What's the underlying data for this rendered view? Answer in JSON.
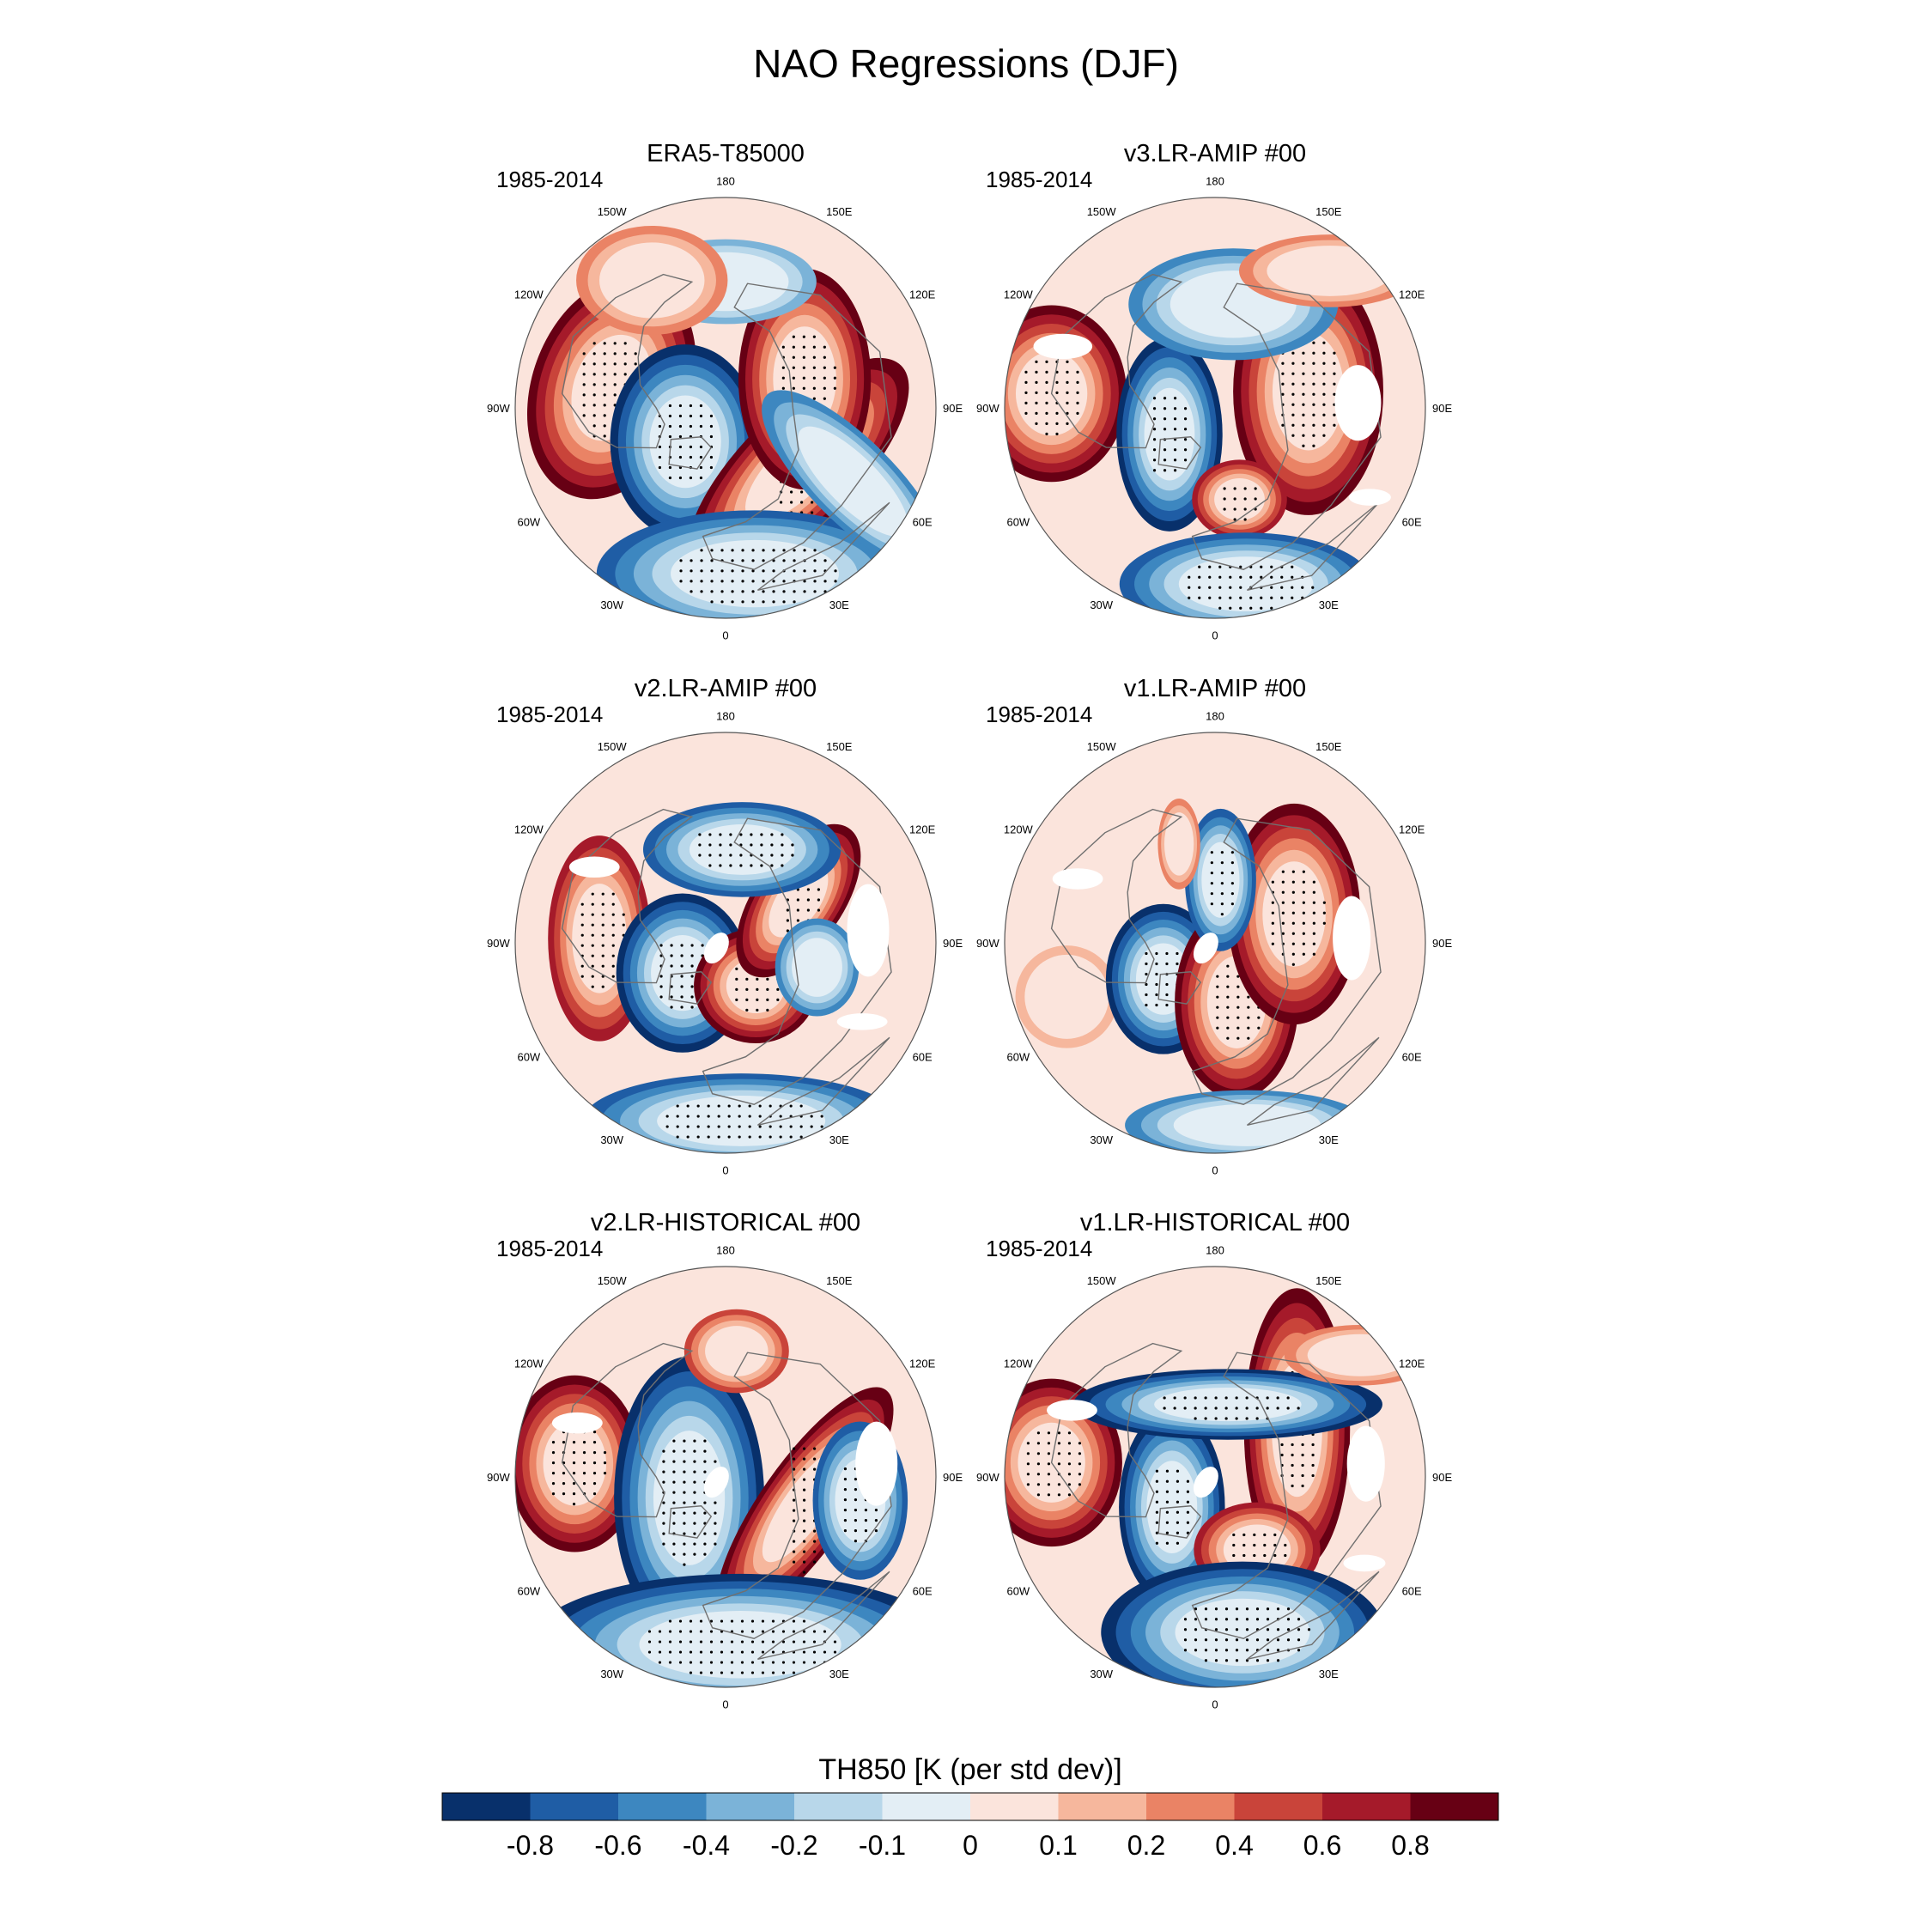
{
  "title": "NAO Regressions (DJF)",
  "colors": {
    "levels": [
      "#08306b",
      "#1f5da5",
      "#3d87c0",
      "#7bb3d8",
      "#b8d7ea",
      "#e3eef5",
      "#fbe4dc",
      "#f6b79d",
      "#ea8365",
      "#c9443a",
      "#a51a2a",
      "#670014"
    ],
    "land": "#707070",
    "stipple": "#000000",
    "missing": "#ffffff",
    "outline": "#555555"
  },
  "panels": [
    {
      "title": "ERA5-T85000",
      "period": "1985-2014",
      "blobs": [
        {
          "lon": -100,
          "r": 0.55,
          "rx": 0.18,
          "ry": 0.26,
          "rot": 20,
          "level": 11
        },
        {
          "lon": -50,
          "r": 0.25,
          "rx": 0.17,
          "ry": 0.22,
          "rot": 0,
          "level": 0
        },
        {
          "lon": 50,
          "r": 0.45,
          "rx": 0.13,
          "ry": 0.33,
          "rot": 45,
          "level": 11
        },
        {
          "lon": 110,
          "r": 0.4,
          "rx": 0.15,
          "ry": 0.25,
          "rot": 0,
          "level": 11
        },
        {
          "lon": 10,
          "r": 0.8,
          "rx": 0.4,
          "ry": 0.16,
          "rot": 0,
          "level": 1
        },
        {
          "lon": 60,
          "r": 0.7,
          "rx": 0.35,
          "ry": 0.12,
          "rot": 45,
          "level": 2
        },
        {
          "lon": 180,
          "r": 0.6,
          "rx": 0.3,
          "ry": 0.14,
          "rot": 0,
          "level": 3
        },
        {
          "lon": -150,
          "r": 0.7,
          "rx": 0.25,
          "ry": 0.18,
          "rot": 0,
          "level": 8
        }
      ],
      "holes": []
    },
    {
      "title": "v3.LR-AMIP  #00",
      "period": "1985-2014",
      "blobs": [
        {
          "lon": -95,
          "r": 0.78,
          "rx": 0.17,
          "ry": 0.2,
          "rot": 0,
          "level": 11
        },
        {
          "lon": -60,
          "r": 0.25,
          "rx": 0.12,
          "ry": 0.22,
          "rot": 0,
          "level": 0
        },
        {
          "lon": 100,
          "r": 0.45,
          "rx": 0.17,
          "ry": 0.28,
          "rot": 0,
          "level": 11
        },
        {
          "lon": 15,
          "r": 0.45,
          "rx": 0.12,
          "ry": 0.1,
          "rot": 0,
          "level": 10
        },
        {
          "lon": 10,
          "r": 0.85,
          "rx": 0.32,
          "ry": 0.13,
          "rot": 0,
          "level": 1
        },
        {
          "lon": 170,
          "r": 0.5,
          "rx": 0.3,
          "ry": 0.16,
          "rot": 0,
          "level": 2
        },
        {
          "lon": 140,
          "r": 0.85,
          "rx": 0.3,
          "ry": 0.12,
          "rot": 0,
          "level": 8
        }
      ],
      "holes": [
        {
          "lon": 92,
          "r": 0.68,
          "rx": 0.11,
          "ry": 0.18,
          "rot": 0
        },
        {
          "lon": -112,
          "r": 0.78,
          "rx": 0.14,
          "ry": 0.06,
          "rot": 0
        },
        {
          "lon": 60,
          "r": 0.85,
          "rx": 0.1,
          "ry": 0.04,
          "rot": 0
        }
      ]
    },
    {
      "title": "v2.LR-AMIP  #00",
      "period": "1985-2014",
      "blobs": [
        {
          "lon": -92,
          "r": 0.6,
          "rx": 0.13,
          "ry": 0.26,
          "rot": 0,
          "level": 10
        },
        {
          "lon": -55,
          "r": 0.25,
          "rx": 0.15,
          "ry": 0.18,
          "rot": 0,
          "level": 0
        },
        {
          "lon": 35,
          "r": 0.25,
          "rx": 0.14,
          "ry": 0.13,
          "rot": 0,
          "level": 11
        },
        {
          "lon": 120,
          "r": 0.4,
          "rx": 0.1,
          "ry": 0.2,
          "rot": 35,
          "level": 11
        },
        {
          "lon": 170,
          "r": 0.45,
          "rx": 0.25,
          "ry": 0.12,
          "rot": 0,
          "level": 1
        },
        {
          "lon": 5,
          "r": 0.85,
          "rx": 0.4,
          "ry": 0.12,
          "rot": 0,
          "level": 1
        },
        {
          "lon": 75,
          "r": 0.45,
          "rx": 0.12,
          "ry": 0.14,
          "rot": 0,
          "level": 2
        }
      ],
      "holes": [
        {
          "lon": 95,
          "r": 0.68,
          "rx": 0.1,
          "ry": 0.22,
          "rot": 0
        },
        {
          "lon": -120,
          "r": 0.72,
          "rx": 0.12,
          "ry": 0.05,
          "rot": 0
        },
        {
          "lon": -60,
          "r": 0.05,
          "rx": 0.05,
          "ry": 0.08,
          "rot": 30
        },
        {
          "lon": 60,
          "r": 0.75,
          "rx": 0.12,
          "ry": 0.04,
          "rot": 0
        }
      ]
    },
    {
      "title": "v1.LR-AMIP  #00",
      "period": "1985-2014",
      "blobs": [
        {
          "lon": -70,
          "r": 0.75,
          "rx": 0.2,
          "ry": 0.2,
          "rot": 0,
          "level": 7
        },
        {
          "lon": -55,
          "r": 0.3,
          "rx": 0.13,
          "ry": 0.17,
          "rot": 0,
          "level": 0
        },
        {
          "lon": 20,
          "r": 0.3,
          "rx": 0.14,
          "ry": 0.22,
          "rot": 0,
          "level": 11
        },
        {
          "lon": 110,
          "r": 0.4,
          "rx": 0.15,
          "ry": 0.25,
          "rot": 0,
          "level": 11
        },
        {
          "lon": 175,
          "r": 0.3,
          "rx": 0.09,
          "ry": 0.18,
          "rot": 0,
          "level": 1
        },
        {
          "lon": 10,
          "r": 0.88,
          "rx": 0.35,
          "ry": 0.1,
          "rot": 0,
          "level": 2
        },
        {
          "lon": -160,
          "r": 0.5,
          "rx": 0.07,
          "ry": 0.15,
          "rot": 0,
          "level": 8
        }
      ],
      "holes": [
        {
          "lon": 92,
          "r": 0.65,
          "rx": 0.09,
          "ry": 0.2,
          "rot": 0
        },
        {
          "lon": -115,
          "r": 0.72,
          "rx": 0.12,
          "ry": 0.05,
          "rot": 0
        },
        {
          "lon": -60,
          "r": 0.05,
          "rx": 0.05,
          "ry": 0.08,
          "rot": 30
        }
      ]
    },
    {
      "title": "v2.LR-HISTORICAL  #00",
      "period": "1985-2014",
      "blobs": [
        {
          "lon": -95,
          "r": 0.72,
          "rx": 0.15,
          "ry": 0.2,
          "rot": 0,
          "level": 11
        },
        {
          "lon": -60,
          "r": 0.2,
          "rx": 0.17,
          "ry": 0.32,
          "rot": 0,
          "level": 0
        },
        {
          "lon": 70,
          "r": 0.4,
          "rx": 0.1,
          "ry": 0.32,
          "rot": 35,
          "level": 11
        },
        {
          "lon": 175,
          "r": 0.6,
          "rx": 0.15,
          "ry": 0.12,
          "rot": 0,
          "level": 9
        },
        {
          "lon": 5,
          "r": 0.8,
          "rx": 0.48,
          "ry": 0.16,
          "rot": 0,
          "level": 0
        },
        {
          "lon": 80,
          "r": 0.65,
          "rx": 0.12,
          "ry": 0.2,
          "rot": 0,
          "level": 1
        }
      ],
      "holes": [
        {
          "lon": 95,
          "r": 0.72,
          "rx": 0.1,
          "ry": 0.2,
          "rot": 0
        },
        {
          "lon": -110,
          "r": 0.75,
          "rx": 0.12,
          "ry": 0.05,
          "rot": 0
        },
        {
          "lon": -60,
          "r": 0.05,
          "rx": 0.05,
          "ry": 0.08,
          "rot": 30
        }
      ]
    },
    {
      "title": "v1.LR-HISTORICAL  #00",
      "period": "1985-2014",
      "blobs": [
        {
          "lon": -95,
          "r": 0.78,
          "rx": 0.16,
          "ry": 0.19,
          "rot": 0,
          "level": 11
        },
        {
          "lon": -55,
          "r": 0.25,
          "rx": 0.12,
          "ry": 0.22,
          "rot": 0,
          "level": 0
        },
        {
          "lon": 120,
          "r": 0.45,
          "rx": 0.12,
          "ry": 0.32,
          "rot": 0,
          "level": 11
        },
        {
          "lon": 30,
          "r": 0.4,
          "rx": 0.16,
          "ry": 0.12,
          "rot": 0,
          "level": 10
        },
        {
          "lon": 170,
          "r": 0.35,
          "rx": 0.35,
          "ry": 0.08,
          "rot": 0,
          "level": 0
        },
        {
          "lon": 10,
          "r": 0.75,
          "rx": 0.32,
          "ry": 0.16,
          "rot": 0,
          "level": 0
        },
        {
          "lon": 130,
          "r": 0.9,
          "rx": 0.25,
          "ry": 0.1,
          "rot": 0,
          "level": 8
        }
      ],
      "holes": [
        {
          "lon": 95,
          "r": 0.72,
          "rx": 0.09,
          "ry": 0.18,
          "rot": 0
        },
        {
          "lon": -115,
          "r": 0.75,
          "rx": 0.12,
          "ry": 0.05,
          "rot": 0
        },
        {
          "lon": -60,
          "r": 0.05,
          "rx": 0.05,
          "ry": 0.08,
          "rot": 30
        },
        {
          "lon": 60,
          "r": 0.82,
          "rx": 0.1,
          "ry": 0.04,
          "rot": 0
        }
      ]
    }
  ],
  "lon_labels": [
    {
      "lon": 180,
      "text": "180"
    },
    {
      "lon": 150,
      "text": "150E"
    },
    {
      "lon": 120,
      "text": "120E"
    },
    {
      "lon": 90,
      "text": "90E"
    },
    {
      "lon": 60,
      "text": "60E"
    },
    {
      "lon": 30,
      "text": "30E"
    },
    {
      "lon": 0,
      "text": "0"
    },
    {
      "lon": -30,
      "text": "30W"
    },
    {
      "lon": -60,
      "text": "60W"
    },
    {
      "lon": -90,
      "text": "90W"
    },
    {
      "lon": -120,
      "text": "120W"
    },
    {
      "lon": -150,
      "text": "150W"
    }
  ],
  "colorbar": {
    "title": "TH850 [K (per std dev)]",
    "labels": [
      "-0.8",
      "-0.6",
      "-0.4",
      "-0.2",
      "-0.1",
      "0",
      "0.1",
      "0.2",
      "0.4",
      "0.6",
      "0.8"
    ]
  }
}
